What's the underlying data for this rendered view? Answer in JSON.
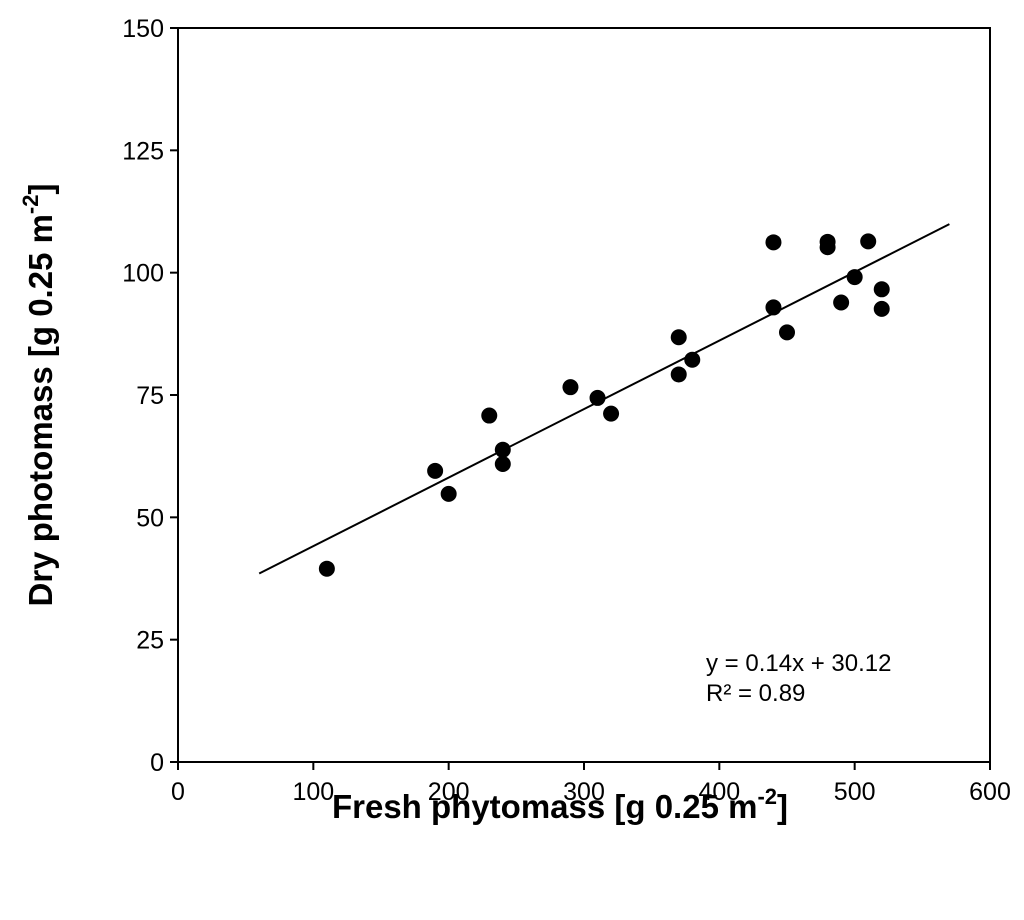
{
  "chart_data": {
    "type": "scatter",
    "title": "",
    "xlabel": "Fresh phytomass [g 0.25 m",
    "xlabel_sup": "-2",
    "xlabel_end": "]",
    "ylabel": "Dry photomass  [g 0.25 m",
    "ylabel_sup": "-2",
    "ylabel_end": "]",
    "xlim": [
      0,
      600
    ],
    "ylim": [
      0,
      150
    ],
    "x_ticks": [
      0,
      100,
      200,
      300,
      400,
      500,
      600
    ],
    "y_ticks": [
      0,
      25,
      50,
      75,
      100,
      125,
      150
    ],
    "x_tick_labels": [
      "0",
      "100",
      "200",
      "300",
      "400",
      "500",
      "600"
    ],
    "y_tick_labels": [
      "0",
      "25",
      "50",
      "75",
      "100",
      "125",
      "150"
    ],
    "grid": false,
    "series": [
      {
        "points": [
          [
            110,
            39.5
          ],
          [
            190,
            59.5
          ],
          [
            200,
            54.8
          ],
          [
            230,
            70.8
          ],
          [
            240,
            63.8
          ],
          [
            240,
            60.9
          ],
          [
            290,
            76.6
          ],
          [
            310,
            74.4
          ],
          [
            320,
            71.2
          ],
          [
            370,
            86.8
          ],
          [
            370,
            79.2
          ],
          [
            380,
            82.2
          ],
          [
            440,
            106.2
          ],
          [
            440,
            92.9
          ],
          [
            450,
            87.8
          ],
          [
            480,
            106.3
          ],
          [
            480,
            105.2
          ],
          [
            490,
            93.9
          ],
          [
            500,
            99.1
          ],
          [
            510,
            106.4
          ],
          [
            520,
            96.6
          ],
          [
            520,
            92.6
          ]
        ]
      }
    ],
    "trendline": {
      "slope": 0.14,
      "intercept": 30.12,
      "x_range": [
        60,
        570
      ]
    },
    "annotations": {
      "equation": "y = 0.14x + 30.12",
      "r_squared": "R² = 0.89"
    }
  }
}
